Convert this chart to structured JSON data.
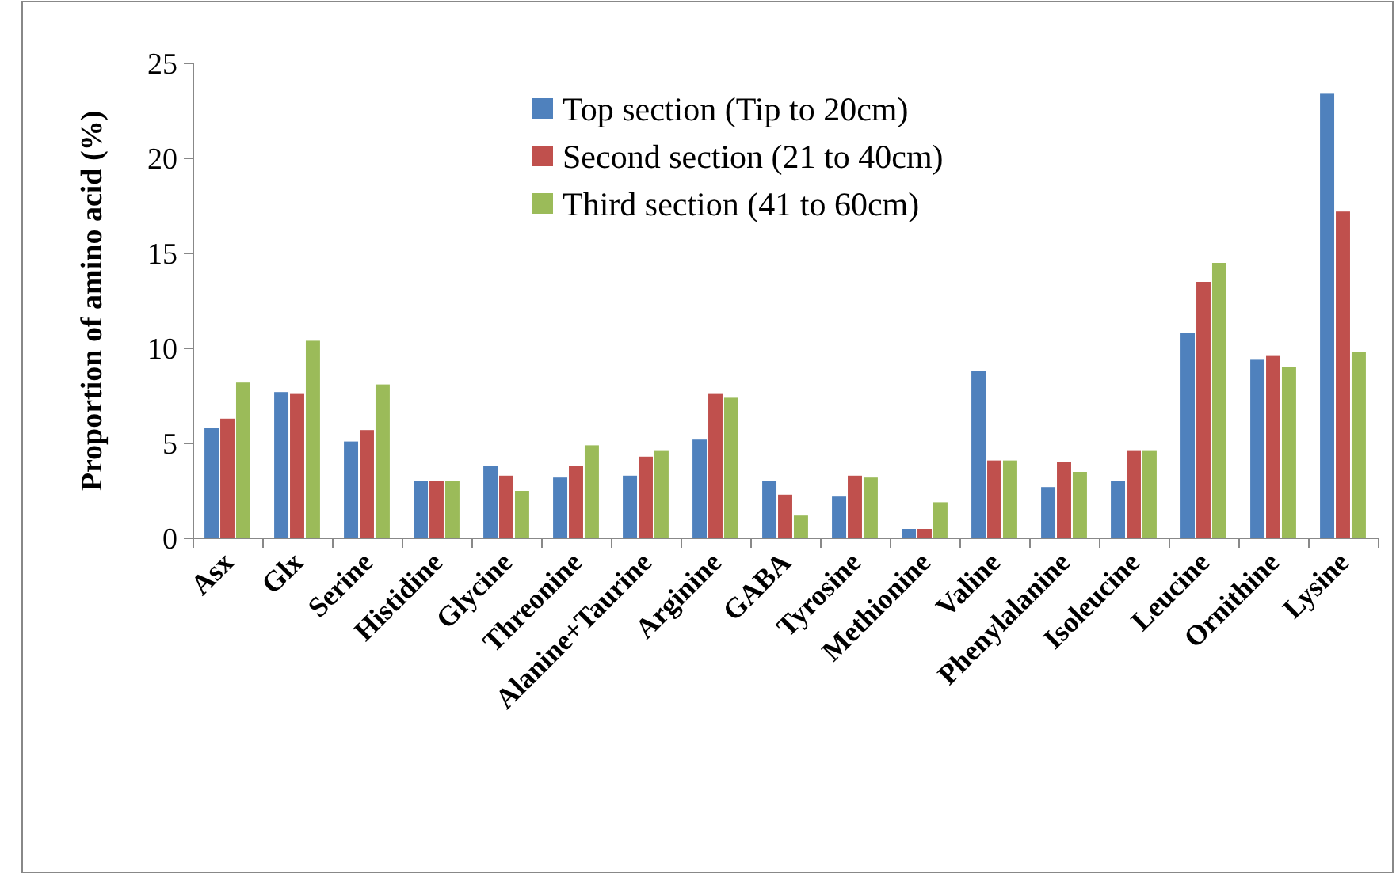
{
  "chart_data": {
    "type": "bar",
    "ylabel": "Proportion of amino acid (%)",
    "categories": [
      "Asx",
      "Glx",
      "Serine",
      "Histidine",
      "Glycine",
      "Threonine",
      "Alanine+Taurine",
      "Arginine",
      "GABA",
      "Tyrosine",
      "Methionine",
      "Valine",
      "Phenylalanine",
      "Isoleucine",
      "Leucine",
      "Ornithine",
      "Lysine"
    ],
    "series": [
      {
        "name": "Top section (Tip to 20cm)",
        "color": "#4f81bd",
        "values": [
          5.8,
          7.7,
          5.1,
          3.0,
          3.8,
          3.2,
          3.3,
          5.2,
          3.0,
          2.2,
          0.5,
          8.8,
          2.7,
          3.0,
          10.8,
          9.4,
          23.4
        ]
      },
      {
        "name": "Second section (21 to 40cm)",
        "color": "#c0504d",
        "values": [
          6.3,
          7.6,
          5.7,
          3.0,
          3.3,
          3.8,
          4.3,
          7.6,
          2.3,
          3.3,
          0.5,
          4.1,
          4.0,
          4.6,
          13.5,
          9.6,
          17.2
        ]
      },
      {
        "name": "Third section (41 to 60cm)",
        "color": "#9bbb59",
        "values": [
          8.2,
          10.4,
          8.1,
          3.0,
          2.5,
          4.9,
          4.6,
          7.4,
          1.2,
          3.2,
          1.9,
          4.1,
          3.5,
          4.6,
          14.5,
          9.0,
          9.8
        ]
      }
    ],
    "ylim": [
      0,
      25
    ],
    "yticks": [
      0,
      5,
      10,
      15,
      20,
      25
    ],
    "legend": "top"
  }
}
